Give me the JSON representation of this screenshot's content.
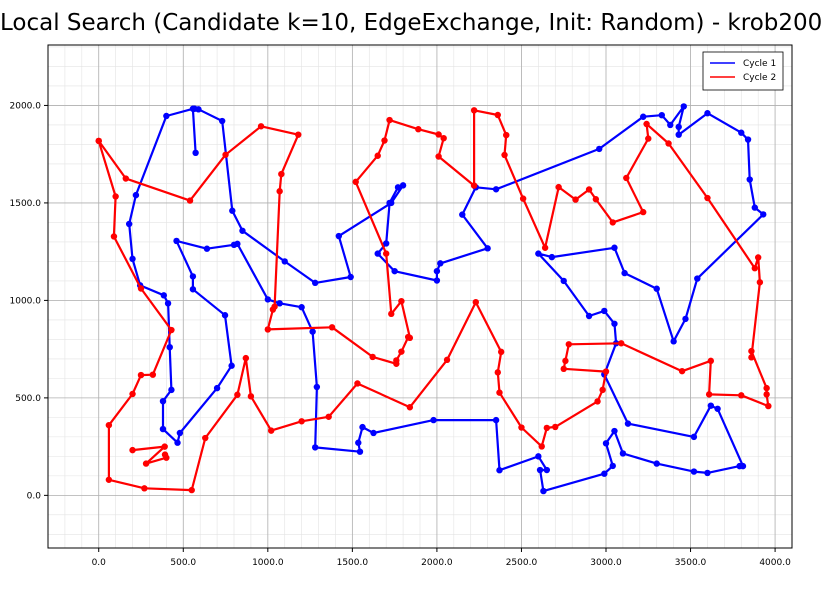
{
  "chart_data": {
    "type": "line",
    "title": "Local Search (Candidate k=10, EdgeExchange, Init: Random) - krob200",
    "xlabel": "",
    "ylabel": "",
    "xlim": [
      -300,
      4100
    ],
    "ylim": [
      -270,
      2310
    ],
    "x_ticks": [
      0,
      500,
      1000,
      1500,
      2000,
      2500,
      3000,
      3500,
      4000
    ],
    "x_tick_labels": [
      "0.0",
      "500.0",
      "1000.0",
      "1500.0",
      "2000.0",
      "2500.0",
      "3000.0",
      "3500.0",
      "4000.0"
    ],
    "y_ticks": [
      0,
      500,
      1000,
      1500,
      2000
    ],
    "y_tick_labels": [
      "0.0",
      "500.0",
      "1000.0",
      "1500.0",
      "2000.0"
    ],
    "grid": true,
    "minor_grid": true,
    "legend_position": "top-right",
    "series": [
      {
        "name": "Cycle 1",
        "color": "#0000ff",
        "points": [
          [
            573,
            1757
          ],
          [
            557,
            1983
          ],
          [
            400,
            1946
          ],
          [
            220,
            1540
          ],
          [
            180,
            1392
          ],
          [
            200,
            1213
          ],
          [
            245,
            1077
          ],
          [
            385,
            1026
          ],
          [
            410,
            985
          ],
          [
            420,
            760
          ],
          [
            430,
            541
          ],
          [
            380,
            483
          ],
          [
            380,
            340
          ],
          [
            466,
            270
          ],
          [
            480,
            320
          ],
          [
            700,
            550
          ],
          [
            786,
            665
          ],
          [
            747,
            924
          ],
          [
            557,
            1057
          ],
          [
            557,
            1123
          ],
          [
            460,
            1305
          ],
          [
            640,
            1265
          ],
          [
            800,
            1285
          ],
          [
            820,
            1290
          ],
          [
            1000,
            1005
          ],
          [
            1070,
            985
          ],
          [
            1200,
            965
          ],
          [
            1265,
            840
          ],
          [
            1290,
            556
          ],
          [
            1280,
            246
          ],
          [
            1545,
            224
          ],
          [
            1535,
            270
          ],
          [
            1560,
            350
          ],
          [
            1625,
            320
          ],
          [
            1980,
            386
          ],
          [
            2350,
            386
          ],
          [
            2370,
            129
          ],
          [
            2600,
            200
          ],
          [
            2650,
            130
          ],
          [
            2610,
            130
          ],
          [
            2630,
            22
          ],
          [
            2990,
            111
          ],
          [
            3040,
            151
          ],
          [
            3000,
            267
          ],
          [
            3050,
            330
          ],
          [
            3100,
            215
          ],
          [
            3300,
            163
          ],
          [
            3520,
            122
          ],
          [
            3600,
            115
          ],
          [
            3790,
            150
          ],
          [
            3810,
            150
          ],
          [
            3660,
            444
          ],
          [
            3620,
            460
          ],
          [
            3520,
            300
          ],
          [
            3130,
            368
          ],
          [
            2990,
            620
          ],
          [
            3060,
            780
          ],
          [
            3050,
            880
          ],
          [
            2990,
            946
          ],
          [
            2900,
            920
          ],
          [
            2750,
            1100
          ],
          [
            2600,
            1240
          ],
          [
            2680,
            1222
          ],
          [
            3050,
            1270
          ],
          [
            3110,
            1140
          ],
          [
            3300,
            1060
          ],
          [
            3400,
            790
          ],
          [
            3470,
            905
          ],
          [
            3540,
            1112
          ],
          [
            3930,
            1441
          ],
          [
            3880,
            1476
          ],
          [
            3850,
            1620
          ],
          [
            3840,
            1825
          ],
          [
            3800,
            1860
          ],
          [
            3600,
            1960
          ],
          [
            3430,
            1850
          ],
          [
            3430,
            1890
          ],
          [
            3460,
            1995
          ],
          [
            3380,
            1900
          ],
          [
            3330,
            1950
          ],
          [
            3220,
            1942
          ],
          [
            2960,
            1777
          ],
          [
            2350,
            1570
          ],
          [
            2230,
            1580
          ],
          [
            2150,
            1440
          ],
          [
            2300,
            1267
          ],
          [
            2020,
            1190
          ],
          [
            2000,
            1150
          ],
          [
            2000,
            1102
          ],
          [
            1750,
            1150
          ],
          [
            1650,
            1240
          ],
          [
            1700,
            1292
          ],
          [
            1720,
            1500
          ],
          [
            1770,
            1580
          ],
          [
            1800,
            1590
          ],
          [
            1730,
            1500
          ],
          [
            1420,
            1330
          ],
          [
            1490,
            1120
          ],
          [
            1280,
            1090
          ],
          [
            1100,
            1200
          ],
          [
            850,
            1357
          ],
          [
            790,
            1460
          ],
          [
            730,
            1920
          ],
          [
            590,
            1980
          ],
          [
            567,
            1983
          ]
        ]
      },
      {
        "name": "Cycle 2",
        "color": "#ff0000",
        "points": [
          [
            0,
            1818
          ],
          [
            160,
            1625
          ],
          [
            540,
            1512
          ],
          [
            750,
            1747
          ],
          [
            960,
            1893
          ],
          [
            1180,
            1850
          ],
          [
            1080,
            1648
          ],
          [
            1070,
            1560
          ],
          [
            1040,
            968
          ],
          [
            1030,
            953
          ],
          [
            1000,
            851
          ],
          [
            1380,
            862
          ],
          [
            1620,
            710
          ],
          [
            1760,
            675
          ],
          [
            1760,
            692
          ],
          [
            1790,
            737
          ],
          [
            1830,
            812
          ],
          [
            1840,
            808
          ],
          [
            1790,
            996
          ],
          [
            1730,
            931
          ],
          [
            1700,
            1240
          ],
          [
            1520,
            1608
          ],
          [
            1650,
            1742
          ],
          [
            1690,
            1820
          ],
          [
            1720,
            1925
          ],
          [
            1890,
            1878
          ],
          [
            2010,
            1851
          ],
          [
            2040,
            1832
          ],
          [
            2010,
            1738
          ],
          [
            2220,
            1589
          ],
          [
            2220,
            1975
          ],
          [
            2360,
            1951
          ],
          [
            2410,
            1848
          ],
          [
            2400,
            1746
          ],
          [
            2510,
            1522
          ],
          [
            2640,
            1270
          ],
          [
            2720,
            1581
          ],
          [
            2820,
            1517
          ],
          [
            2900,
            1569
          ],
          [
            2940,
            1519
          ],
          [
            3040,
            1400
          ],
          [
            3220,
            1453
          ],
          [
            3120,
            1628
          ],
          [
            3250,
            1830
          ],
          [
            3240,
            1905
          ],
          [
            3370,
            1805
          ],
          [
            3600,
            1525
          ],
          [
            3880,
            1165
          ],
          [
            3900,
            1220
          ],
          [
            3910,
            1093
          ],
          [
            3860,
            708
          ],
          [
            3860,
            740
          ],
          [
            3950,
            550
          ],
          [
            3950,
            518
          ],
          [
            3960,
            458
          ],
          [
            3800,
            513
          ],
          [
            3610,
            518
          ],
          [
            3620,
            690
          ],
          [
            3450,
            637
          ],
          [
            3090,
            780
          ],
          [
            2780,
            775
          ],
          [
            2760,
            690
          ],
          [
            2750,
            649
          ],
          [
            3000,
            635
          ],
          [
            2980,
            541
          ],
          [
            2950,
            482
          ],
          [
            2700,
            351
          ],
          [
            2650,
            346
          ],
          [
            2620,
            251
          ],
          [
            2500,
            348
          ],
          [
            2370,
            527
          ],
          [
            2360,
            631
          ],
          [
            2380,
            736
          ],
          [
            2230,
            991
          ],
          [
            2060,
            695
          ],
          [
            1840,
            452
          ],
          [
            1530,
            574
          ],
          [
            1360,
            403
          ],
          [
            1200,
            380
          ],
          [
            1020,
            332
          ],
          [
            900,
            508
          ],
          [
            870,
            704
          ],
          [
            820,
            516
          ],
          [
            630,
            294
          ],
          [
            550,
            27
          ],
          [
            270,
            36
          ],
          [
            60,
            80
          ],
          [
            60,
            360
          ],
          [
            200,
            520
          ],
          [
            250,
            617
          ],
          [
            320,
            619
          ],
          [
            430,
            848
          ],
          [
            250,
            1061
          ],
          [
            90,
            1328
          ],
          [
            100,
            1533
          ],
          [
            0,
            1818
          ]
        ],
        "extra_points": [
          [
            200,
            232
          ],
          [
            390,
            250
          ],
          [
            280,
            163
          ],
          [
            400,
            193
          ],
          [
            392,
            209
          ]
        ]
      }
    ]
  }
}
